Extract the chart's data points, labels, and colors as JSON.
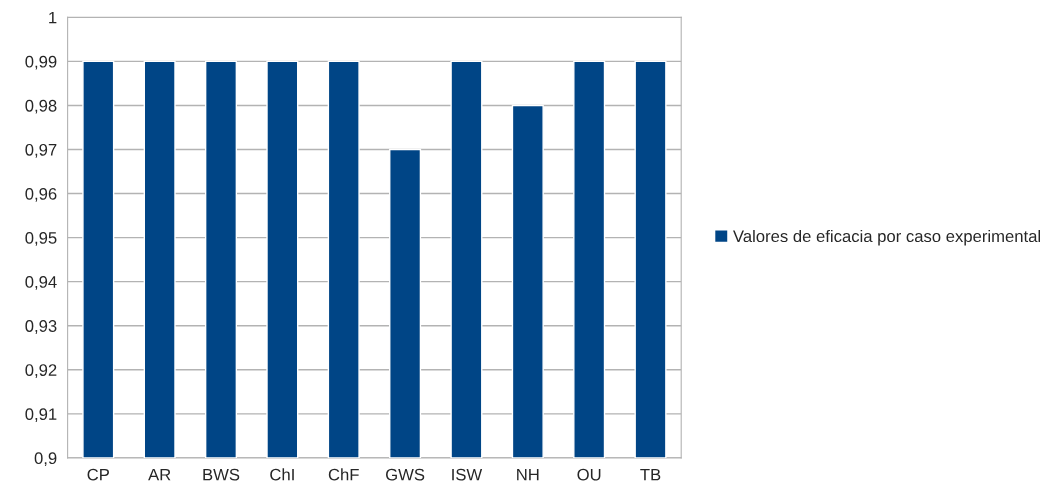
{
  "chart_data": {
    "type": "bar",
    "categories": [
      "CP",
      "AR",
      "BWS",
      "ChI",
      "ChF",
      "GWS",
      "ISW",
      "NH",
      "OU",
      "TB"
    ],
    "series": [
      {
        "name": "Valores de eficacia por caso experimental",
        "color": "#004586",
        "values": [
          0.99,
          0.99,
          0.99,
          0.99,
          0.99,
          0.97,
          0.99,
          0.98,
          0.99,
          0.99
        ]
      }
    ],
    "ylim": [
      0.9,
      1
    ],
    "yticks": [
      {
        "value": 0.9,
        "label": "0,9"
      },
      {
        "value": 0.91,
        "label": "0,91"
      },
      {
        "value": 0.92,
        "label": "0,92"
      },
      {
        "value": 0.93,
        "label": "0,93"
      },
      {
        "value": 0.94,
        "label": "0,94"
      },
      {
        "value": 0.95,
        "label": "0,95"
      },
      {
        "value": 0.96,
        "label": "0,96"
      },
      {
        "value": 0.97,
        "label": "0,97"
      },
      {
        "value": 0.98,
        "label": "0,98"
      },
      {
        "value": 0.99,
        "label": "0,99"
      },
      {
        "value": 1,
        "label": "1"
      }
    ],
    "grid": "y",
    "legend": "right"
  }
}
